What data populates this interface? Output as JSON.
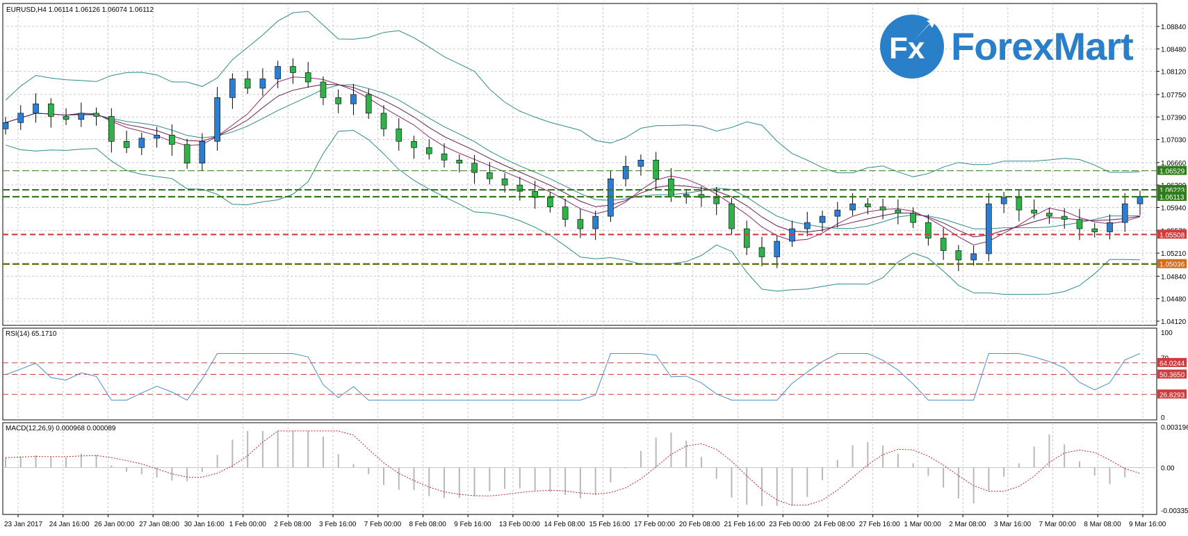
{
  "window": {
    "symbol_header": "EURUSD,H4  1.06114 1.06126 1.06074 1.06112"
  },
  "logo": {
    "mark": "Fx",
    "name": "ForexMart",
    "color": "#2a7fc9"
  },
  "colors": {
    "bull_candle": "#2a7fd4",
    "bear_candle": "#2fb24a",
    "bands": "#2f8a8a",
    "ma_fast": "#8b2b6e",
    "ma_slow": "#6a1b4d",
    "green_level": "#2e7d1a",
    "red_level": "#d23b3b",
    "indicator_line": "#4a8fc9",
    "macd_signal": "#c02020",
    "macd_hist": "#b8b8b8"
  },
  "price_axis": [
    "1.08840",
    "1.08480",
    "1.08120",
    "1.07750",
    "1.07390",
    "1.07030",
    "1.06660",
    "1.06300",
    "1.05940",
    "1.05570",
    "1.05210",
    "1.04840",
    "1.04480",
    "1.04120"
  ],
  "price_tags": [
    {
      "value": "1.06529",
      "color": "#2e7d1a",
      "kind": "green"
    },
    {
      "value": "1.06223",
      "color": "#2e7d1a",
      "kind": "green"
    },
    {
      "value": "1.06113",
      "color": "#2e7d1a",
      "kind": "green"
    },
    {
      "value": "1.05508",
      "color": "#d23b3b",
      "kind": "red"
    },
    {
      "value": "1.05036",
      "color": "#d46a1a",
      "kind": "orange"
    }
  ],
  "rsi": {
    "label": "RSI(14) 65.1710",
    "axis": [
      "100",
      "70",
      "30",
      "0"
    ],
    "levels": [
      {
        "value": "64.0244",
        "color": "#d23b3b"
      },
      {
        "value": "50.3650",
        "color": "#d23b3b"
      },
      {
        "value": "26.8293",
        "color": "#d23b3b"
      }
    ]
  },
  "macd": {
    "label": "MACD(12,26,9) 0.000968 0.000089",
    "axis": [
      "0.003196",
      "0.00",
      "-0.003354"
    ]
  },
  "time_axis": [
    "23 Jan 2017",
    "24 Jan 16:00",
    "26 Jan 00:00",
    "27 Jan 08:00",
    "30 Jan 16:00",
    "1 Feb 00:00",
    "2 Feb 08:00",
    "3 Feb 16:00",
    "7 Feb 00:00",
    "8 Feb 08:00",
    "9 Feb 16:00",
    "13 Feb 00:00",
    "14 Feb 08:00",
    "15 Feb 16:00",
    "17 Feb 00:00",
    "20 Feb 08:00",
    "21 Feb 16:00",
    "23 Feb 00:00",
    "24 Feb 08:00",
    "27 Feb 16:00",
    "1 Mar 00:00",
    "2 Mar 08:00",
    "3 Mar 16:00",
    "7 Mar 00:00",
    "8 Mar 08:00",
    "9 Mar 16:00"
  ],
  "chart_data": {
    "type": "candlestick",
    "symbol": "EURUSD",
    "timeframe": "H4",
    "ylim": [
      1.0412,
      1.0902
    ],
    "close_path": [
      1.073,
      1.0745,
      1.076,
      1.074,
      1.0735,
      1.0745,
      1.074,
      1.07,
      1.069,
      1.0705,
      1.071,
      1.0695,
      1.0665,
      1.07,
      1.077,
      1.08,
      1.0785,
      1.08,
      1.082,
      1.081,
      1.0795,
      1.077,
      1.076,
      1.0775,
      1.0745,
      1.072,
      1.07,
      1.069,
      1.068,
      1.067,
      1.0665,
      1.065,
      1.064,
      1.063,
      1.062,
      1.061,
      1.0595,
      1.0575,
      1.056,
      1.058,
      1.064,
      1.066,
      1.067,
      1.064,
      1.0612,
      1.0615,
      1.061,
      1.06,
      1.056,
      1.053,
      1.0515,
      1.054,
      1.056,
      1.057,
      1.058,
      1.059,
      1.06,
      1.0595,
      1.059,
      1.0585,
      1.057,
      1.0545,
      1.0525,
      1.051,
      1.052,
      1.06,
      1.061,
      1.059,
      1.0585,
      1.058,
      1.0575,
      1.056,
      1.0555,
      1.057,
      1.06,
      1.0612
    ]
  }
}
